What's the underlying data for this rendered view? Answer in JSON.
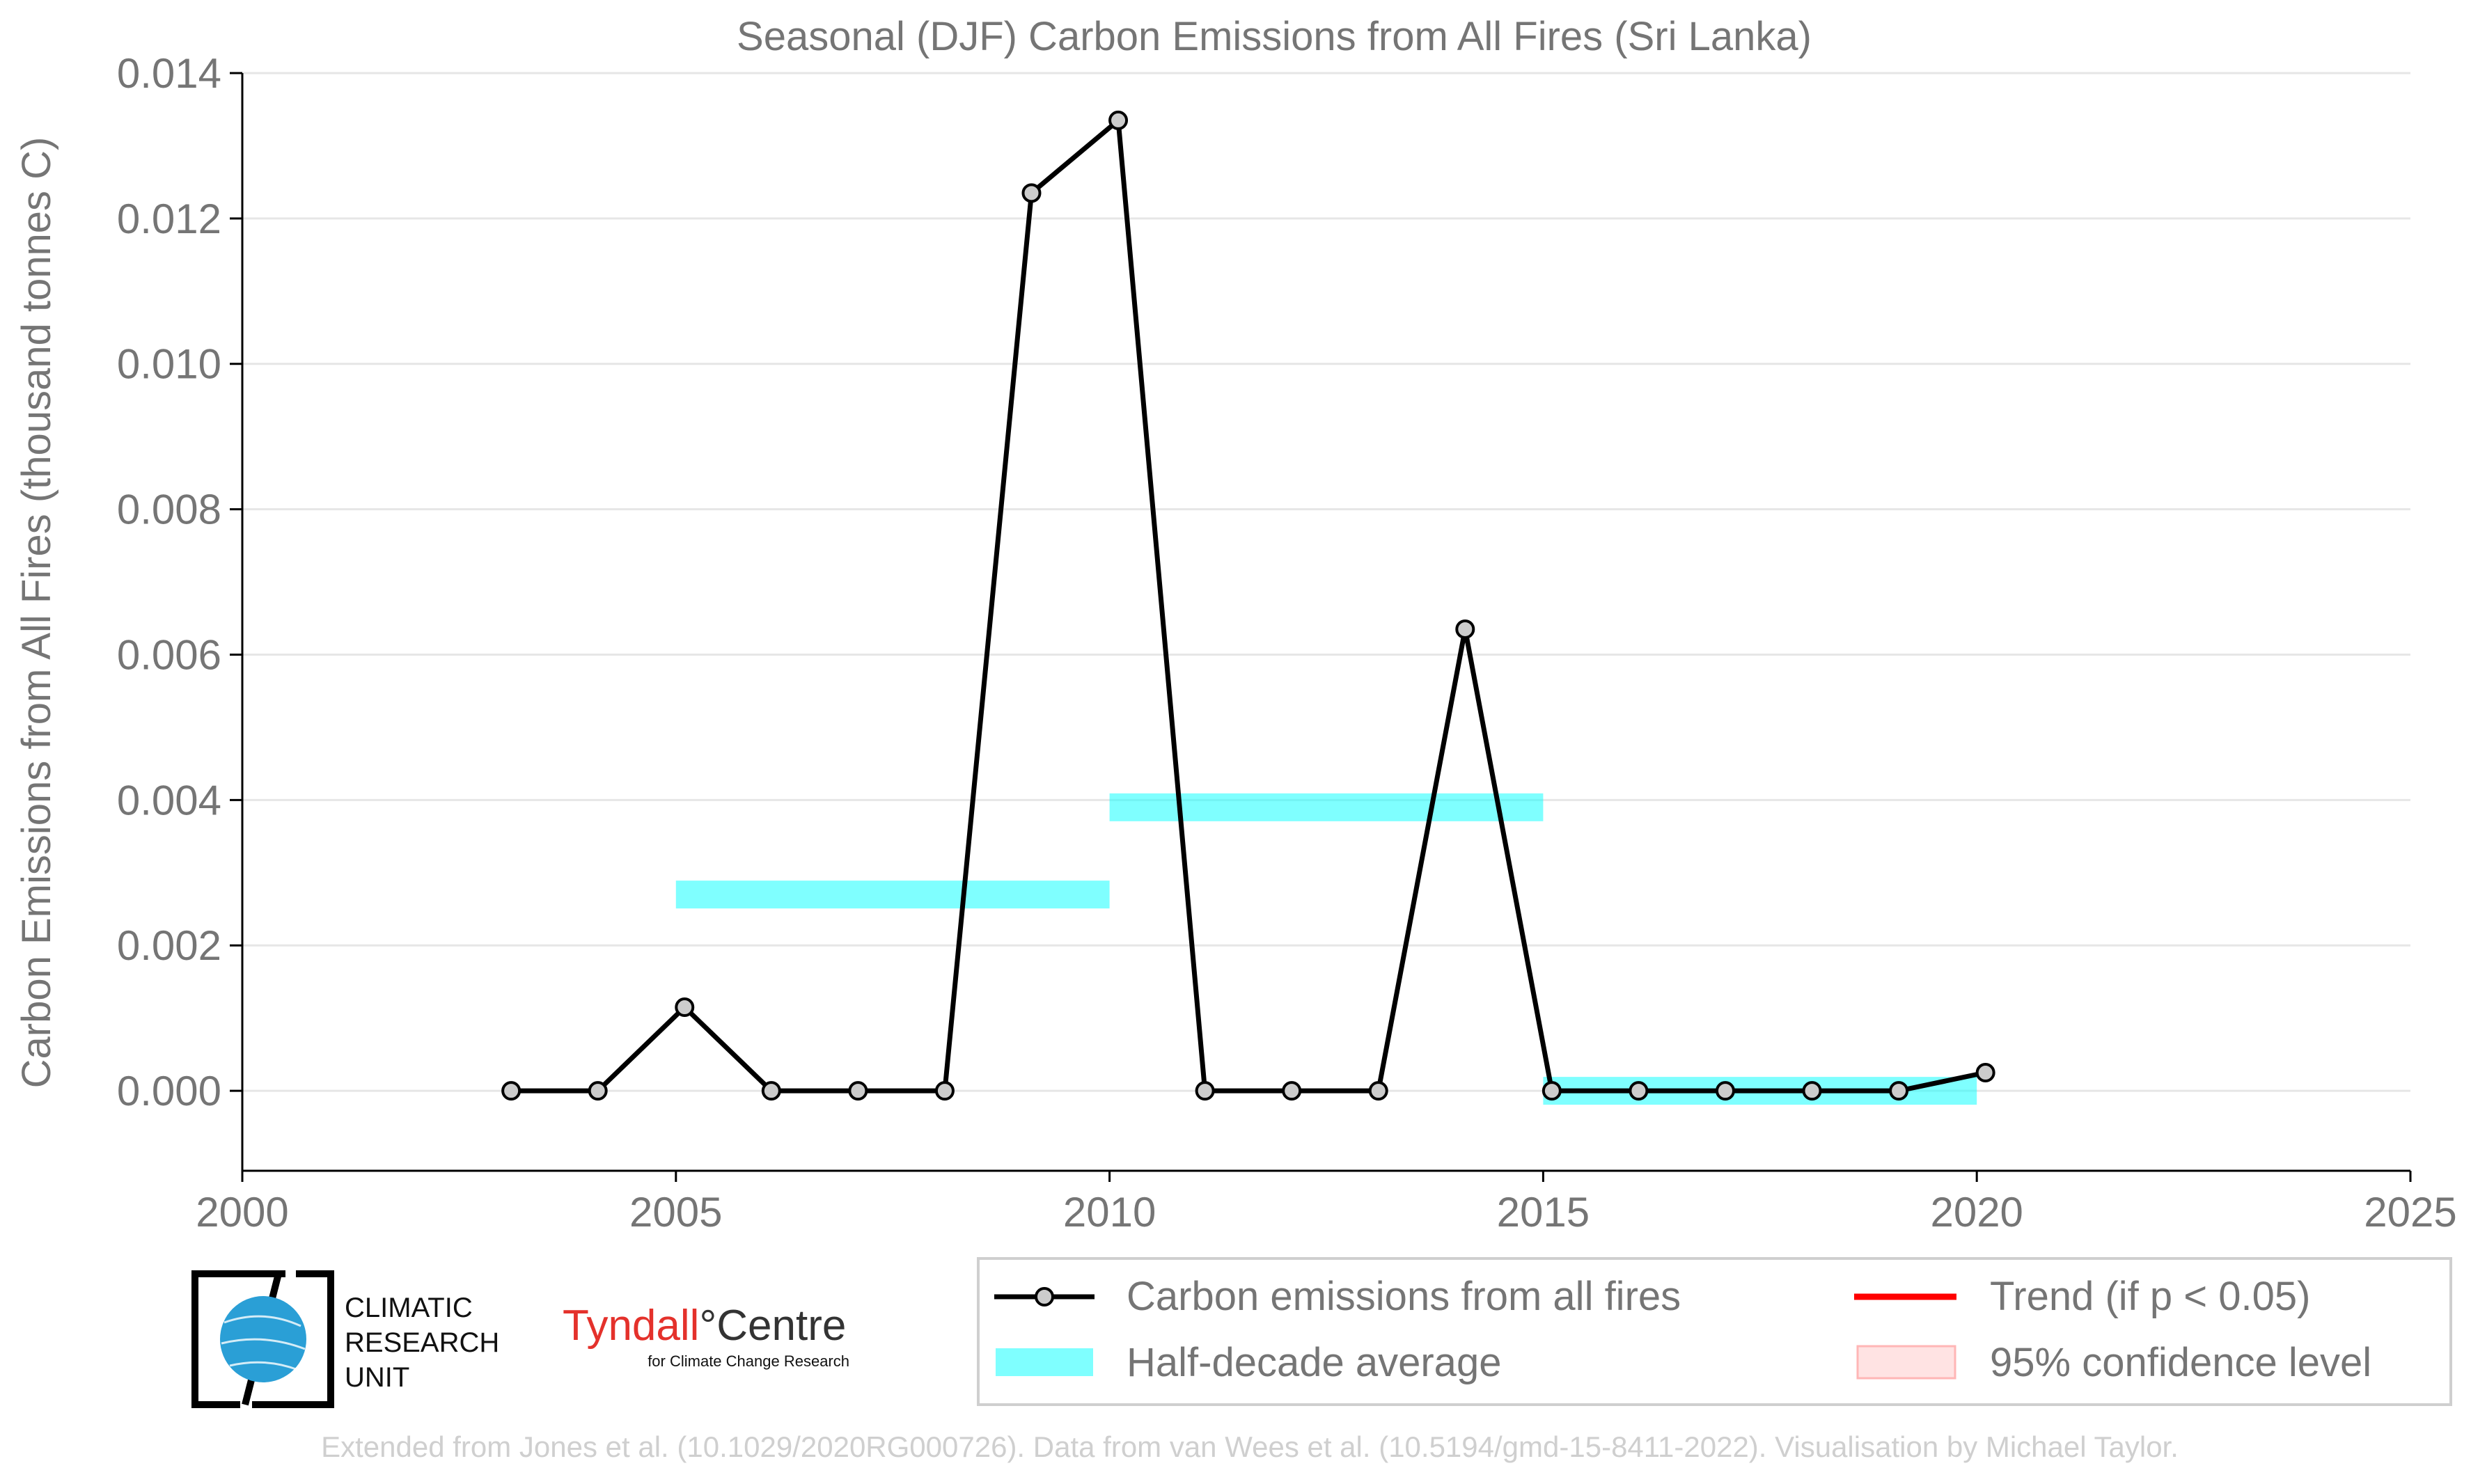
{
  "chart_data": {
    "type": "line",
    "title": "Seasonal (DJF) Carbon Emissions from All Fires (Sri Lanka)",
    "xlabel": "",
    "ylabel": "Carbon Emissions from All Fires (thousand tonnes C)",
    "xlim": [
      2000,
      2025
    ],
    "ylim": [
      -0.0011,
      0.014
    ],
    "x_ticks": [
      "2000",
      "2005",
      "2010",
      "2015",
      "2020",
      "2025"
    ],
    "y_ticks": [
      "0.000",
      "0.002",
      "0.004",
      "0.006",
      "0.008",
      "0.010",
      "0.012",
      "0.014"
    ],
    "grid": true,
    "series": [
      {
        "name": "Carbon emissions from all fires",
        "color": "#000000",
        "x": [
          2003.1,
          2004.1,
          2005.1,
          2006.1,
          2007.1,
          2008.1,
          2009.1,
          2010.1,
          2011.1,
          2012.1,
          2013.1,
          2014.1,
          2015.1,
          2016.1,
          2017.1,
          2018.1,
          2019.1,
          2020.1
        ],
        "values": [
          0.0,
          0.0,
          0.00115,
          0.0,
          0.0,
          0.0,
          0.01235,
          0.01335,
          0.0,
          0.0,
          0.0,
          0.00635,
          0.0,
          0.0,
          0.0,
          0.0,
          0.0,
          0.00025
        ]
      }
    ],
    "half_decade_average": {
      "name": "Half-decade average",
      "color": "#00ffff",
      "segments": [
        {
          "x_start": 2005,
          "x_end": 2010,
          "value": 0.0027
        },
        {
          "x_start": 2010,
          "x_end": 2015,
          "value": 0.0039
        },
        {
          "x_start": 2015,
          "x_end": 2020,
          "value": 0.0
        }
      ]
    },
    "legend": {
      "placement": "bottom-right",
      "entries": [
        {
          "label": "Carbon emissions from all fires",
          "kind": "line-marker",
          "color": "#000000"
        },
        {
          "label": "Trend (if p < 0.05)",
          "kind": "line",
          "color": "#ff0000"
        },
        {
          "label": "Half-decade average",
          "kind": "patch",
          "color": "#00ffff"
        },
        {
          "label": "95% confidence level",
          "kind": "patch",
          "color": "#ffb6b6"
        }
      ]
    }
  },
  "logos": {
    "cru": [
      "CLIMATIC",
      "RESEARCH",
      "UNIT"
    ],
    "tyndall_main": "Tyndall",
    "tyndall_degree": "°",
    "tyndall_centre": "Centre",
    "tyndall_sub": "for Climate Change Research"
  },
  "footer": "Extended from Jones et al. (10.1029/2020RG000726). Data from van Wees et al. (10.5194/gmd-15-8411-2022). Visualisation by Michael Taylor."
}
